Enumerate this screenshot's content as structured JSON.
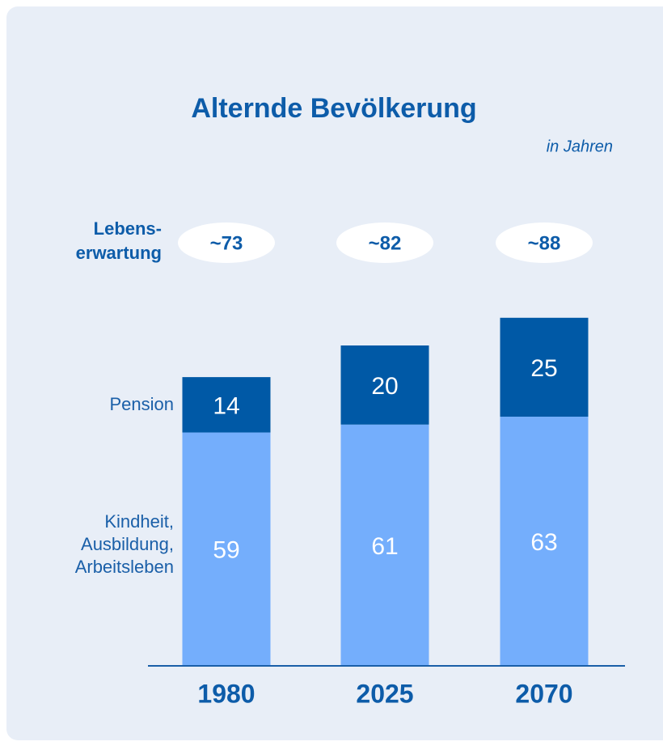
{
  "chart_data": {
    "type": "stacked_bar",
    "title": "Alternde Bevölkerung",
    "subtitle": "in Jahren",
    "categories": [
      "1980",
      "2025",
      "2070"
    ],
    "series": [
      {
        "name": "Kindheit, Ausbildung, Arbeitsleben",
        "color": "#74aefc",
        "values": [
          59,
          61,
          63
        ]
      },
      {
        "name": "Pension",
        "color": "#0059a6",
        "values": [
          14,
          20,
          25
        ]
      }
    ],
    "total_label_title": "Lebens-erwartung",
    "total_labels": [
      "~73",
      "~82",
      "~88"
    ],
    "ylim": [
      0,
      90
    ]
  }
}
